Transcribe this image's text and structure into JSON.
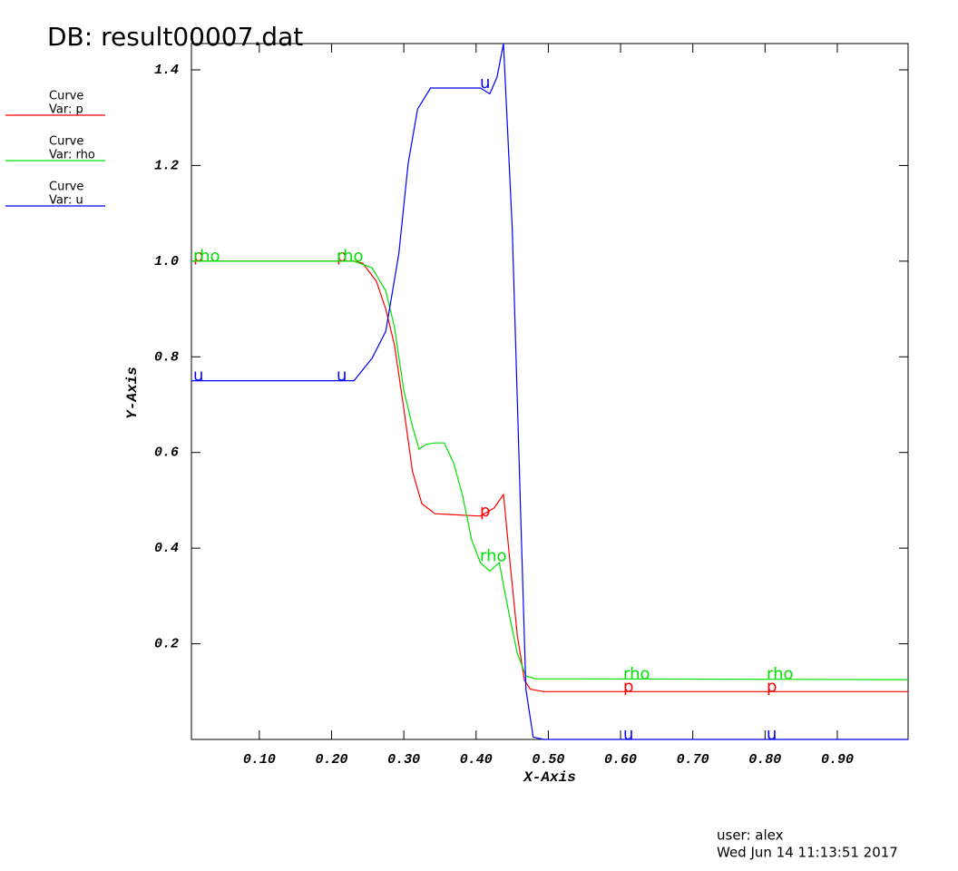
{
  "chart_data": {
    "type": "line",
    "title": "DB: result00007.dat",
    "x_label": "X-Axis",
    "y_label": "Y-Axis",
    "user": "user: alex",
    "date": "Wed Jun 14 11:13:51 2017",
    "xlim": [
      0.006,
      0.998
    ],
    "ylim": [
      0,
      1.455
    ],
    "xticks": [
      {
        "value": 0.1,
        "label": "0.10"
      },
      {
        "value": 0.2,
        "label": "0.20"
      },
      {
        "value": 0.3,
        "label": "0.30"
      },
      {
        "value": 0.4,
        "label": "0.40"
      },
      {
        "value": 0.5,
        "label": "0.50"
      },
      {
        "value": 0.6,
        "label": "0.60"
      },
      {
        "value": 0.7,
        "label": "0.70"
      },
      {
        "value": 0.8,
        "label": "0.80"
      },
      {
        "value": 0.9,
        "label": "0.90"
      }
    ],
    "yticks": [
      0.2,
      0.4,
      0.6,
      0.8,
      {
        "value": 1.0,
        "label": "1.0"
      },
      1.2,
      1.4
    ],
    "legend": [
      {
        "title": "Curve",
        "label": "Var: p"
      },
      {
        "title": "Curve",
        "label": "Var: rho"
      },
      {
        "title": "Curve",
        "label": "Var: u"
      }
    ],
    "series": [
      {
        "name": "p",
        "color": "#ff0000",
        "x": [
          0.006,
          0.231,
          0.243,
          0.262,
          0.275,
          0.287,
          0.3,
          0.312,
          0.325,
          0.343,
          0.381,
          0.406,
          0.425,
          0.438,
          0.447,
          0.457,
          0.467,
          0.475,
          0.494,
          0.998
        ],
        "values": [
          1.0,
          1.0,
          0.996,
          0.958,
          0.9,
          0.825,
          0.692,
          0.56,
          0.493,
          0.472,
          0.469,
          0.467,
          0.484,
          0.512,
          0.37,
          0.218,
          0.124,
          0.105,
          0.1,
          0.1
        ]
      },
      {
        "name": "rho",
        "color": "#00e000",
        "x": [
          0.006,
          0.231,
          0.256,
          0.275,
          0.287,
          0.3,
          0.312,
          0.321,
          0.331,
          0.343,
          0.356,
          0.369,
          0.381,
          0.394,
          0.406,
          0.419,
          0.432,
          0.444,
          0.457,
          0.469,
          0.482,
          0.998
        ],
        "values": [
          1.0,
          1.0,
          0.986,
          0.938,
          0.862,
          0.73,
          0.654,
          0.607,
          0.617,
          0.62,
          0.62,
          0.578,
          0.512,
          0.417,
          0.37,
          0.352,
          0.37,
          0.275,
          0.18,
          0.133,
          0.127,
          0.125
        ]
      },
      {
        "name": "u",
        "color": "#0000ff",
        "x": [
          0.006,
          0.231,
          0.256,
          0.275,
          0.293,
          0.306,
          0.319,
          0.337,
          0.356,
          0.406,
          0.419,
          0.429,
          0.438,
          0.45,
          0.463,
          0.469,
          0.479,
          0.494,
          0.519,
          0.998
        ],
        "values": [
          0.75,
          0.75,
          0.797,
          0.853,
          1.015,
          1.204,
          1.318,
          1.362,
          1.362,
          1.362,
          1.35,
          1.385,
          1.455,
          1.07,
          0.41,
          0.105,
          0.005,
          0,
          0,
          0
        ]
      }
    ]
  }
}
